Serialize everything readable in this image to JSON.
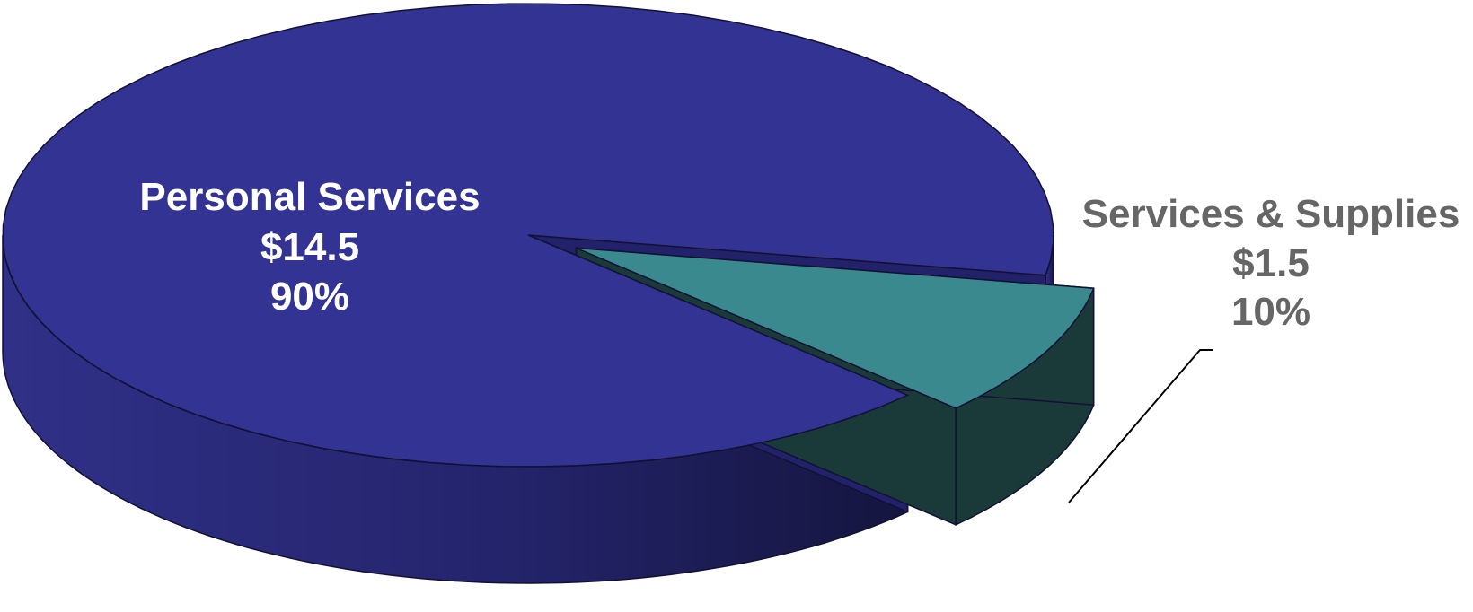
{
  "chart_data": {
    "type": "pie",
    "title": "",
    "slices": [
      {
        "name": "Personal Services",
        "value": 14.5,
        "value_label": "$14.5",
        "percent_label": "90%",
        "color": "#333394",
        "side_color": "#22226a",
        "label_color": "#ffffff",
        "exploded": false
      },
      {
        "name": "Services & Supplies",
        "value": 1.5,
        "value_label": "$1.5",
        "percent_label": "10%",
        "color": "#3a898e",
        "side_color": "#1a3939",
        "label_color": "#666666",
        "exploded": true
      }
    ],
    "style": "3d",
    "legend": "none",
    "grid": false
  }
}
